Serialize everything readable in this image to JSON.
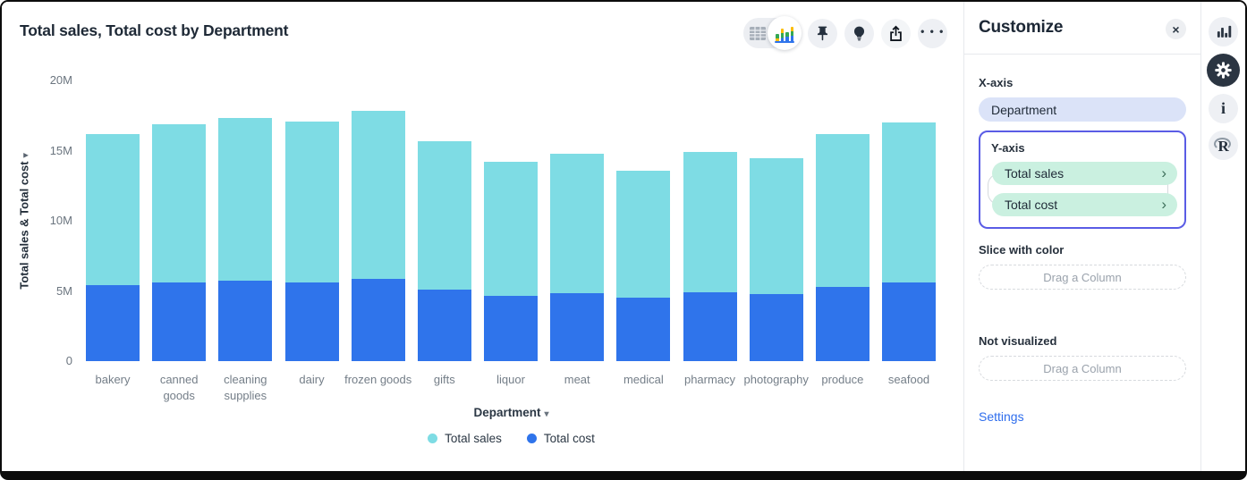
{
  "header": {
    "title": "Total sales, Total cost by Department"
  },
  "icons": {
    "close": "×",
    "chevron_right": "›",
    "dropdown_arrow": "▾",
    "more": "• • •",
    "info": "i",
    "r_logo": "R"
  },
  "chart_data": {
    "type": "bar",
    "stacked": true,
    "categories": [
      "bakery",
      "canned goods",
      "cleaning supplies",
      "dairy",
      "frozen goods",
      "gifts",
      "liquor",
      "meat",
      "medical",
      "pharmacy",
      "photography",
      "produce",
      "seafood"
    ],
    "series": [
      {
        "name": "Total sales",
        "color": "#7EDCE4",
        "values": [
          10.8,
          11.3,
          11.6,
          11.5,
          12.0,
          10.6,
          9.55,
          9.9,
          9.1,
          10.0,
          9.7,
          10.9,
          11.4
        ]
      },
      {
        "name": "Total cost",
        "color": "#2F74EB",
        "values": [
          5.4,
          5.6,
          5.75,
          5.6,
          5.85,
          5.1,
          4.65,
          4.85,
          4.5,
          4.9,
          4.75,
          5.3,
          5.6
        ]
      }
    ],
    "title": "Total sales, Total cost by Department",
    "xlabel": "Department",
    "ylabel": "Total sales & Total cost",
    "ylim": [
      0,
      20
    ],
    "yticks": [
      0,
      5,
      10,
      15,
      20
    ],
    "ytick_labels": [
      "0",
      "5M",
      "10M",
      "15M",
      "20M"
    ],
    "unit": "M",
    "grid": false,
    "legend_position": "bottom"
  },
  "legend": {
    "items": [
      {
        "label": "Total sales",
        "color": "#7EDCE4"
      },
      {
        "label": "Total cost",
        "color": "#2F74EB"
      }
    ]
  },
  "panel": {
    "title": "Customize",
    "x_axis": {
      "label": "X-axis",
      "pill": "Department"
    },
    "y_axis": {
      "label": "Y-axis",
      "pills": [
        "Total sales",
        "Total cost"
      ]
    },
    "slice": {
      "label": "Slice with color",
      "placeholder": "Drag a Column"
    },
    "not_visualized": {
      "label": "Not visualized",
      "placeholder": "Drag a Column"
    },
    "settings_link": "Settings"
  },
  "colors": {
    "total_sales": "#7EDCE4",
    "total_cost": "#2F74EB",
    "x_pill_bg": "#DBE3F8",
    "y_pill_bg": "#CAF0E0",
    "selection_border": "#5A5CE5",
    "link": "#2E6DED"
  }
}
